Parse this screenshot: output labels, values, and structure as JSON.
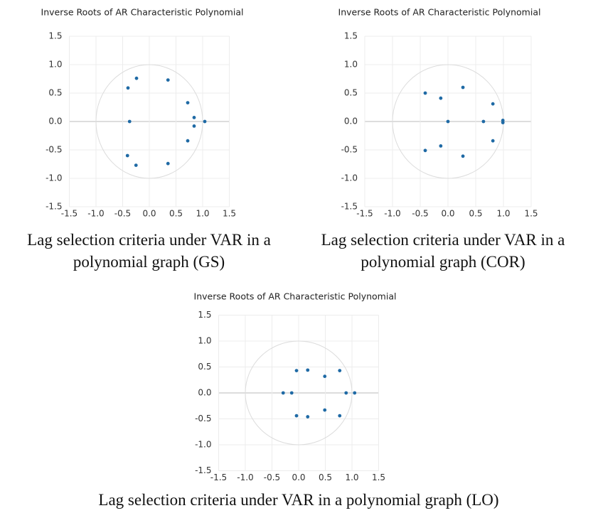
{
  "chart_data": [
    {
      "type": "scatter",
      "title": "Inverse Roots of AR Characteristic Polynomial",
      "caption": "Lag selection criteria under VAR in a polynomial graph (GS)",
      "color": "#1f6aa5",
      "grid": true,
      "xlim": [
        -1.5,
        1.5
      ],
      "ylim": [
        -1.5,
        1.5
      ],
      "xticks": [
        {
          "value": -1.5,
          "label": "-1.5"
        },
        {
          "value": -1,
          "label": "-1.0"
        },
        {
          "value": -0.5,
          "label": "-0.5"
        },
        {
          "value": 0,
          "label": "0.0"
        },
        {
          "value": 0.5,
          "label": "0.5"
        },
        {
          "value": 1,
          "label": "1.0"
        },
        {
          "value": 1.5,
          "label": "1.5"
        }
      ],
      "yticks": [
        {
          "value": -1.5,
          "label": "-1.5"
        },
        {
          "value": -1,
          "label": "-1.0"
        },
        {
          "value": -0.5,
          "label": "-0.5"
        },
        {
          "value": 0,
          "label": "0.0"
        },
        {
          "value": 0.5,
          "label": "0.5"
        },
        {
          "value": 1,
          "label": "1.0"
        },
        {
          "value": 1.5,
          "label": "1.5"
        }
      ],
      "x": [
        -0.4,
        -0.24,
        0.35,
        0.72,
        0.84,
        1.04,
        0.84,
        0.72,
        -0.37,
        -0.41,
        -0.25,
        0.35
      ],
      "values": [
        0.59,
        0.76,
        0.73,
        0.33,
        0.07,
        0.0,
        -0.08,
        -0.34,
        0.0,
        -0.6,
        -0.77,
        -0.74
      ]
    },
    {
      "type": "scatter",
      "title": "Inverse Roots of AR Characteristic Polynomial",
      "caption": "Lag selection criteria under VAR in a polynomial graph (COR)",
      "color": "#1f6aa5",
      "grid": true,
      "xlim": [
        -1.5,
        1.5
      ],
      "ylim": [
        -1.5,
        1.5
      ],
      "xticks": [
        {
          "value": -1.5,
          "label": "-1.5"
        },
        {
          "value": -1,
          "label": "-1.0"
        },
        {
          "value": -0.5,
          "label": "-0.5"
        },
        {
          "value": 0,
          "label": "0.0"
        },
        {
          "value": 0.5,
          "label": "0.5"
        },
        {
          "value": 1,
          "label": "1.0"
        },
        {
          "value": 1.5,
          "label": "1.5"
        }
      ],
      "yticks": [
        {
          "value": -1.5,
          "label": "-1.5"
        },
        {
          "value": -1,
          "label": "-1.0"
        },
        {
          "value": -0.5,
          "label": "-0.5"
        },
        {
          "value": 0,
          "label": "0.0"
        },
        {
          "value": 0.5,
          "label": "0.5"
        },
        {
          "value": 1,
          "label": "1.0"
        },
        {
          "value": 1.5,
          "label": "1.5"
        }
      ],
      "x": [
        -0.41,
        -0.13,
        0.27,
        0.81,
        0,
        0.64,
        0.99,
        0.99,
        0.81,
        -0.13,
        -0.41,
        0.27
      ],
      "values": [
        0.5,
        0.41,
        0.6,
        0.31,
        0,
        0,
        0.02,
        -0.02,
        -0.34,
        -0.43,
        -0.51,
        -0.61
      ]
    },
    {
      "type": "scatter",
      "title": "Inverse Roots of AR Characteristic Polynomial",
      "caption": "Lag selection criteria under VAR in a polynomial graph (LO)",
      "color": "#1f6aa5",
      "grid": true,
      "xlim": [
        -1.5,
        1.5
      ],
      "ylim": [
        -1.5,
        1.5
      ],
      "xticks": [
        {
          "value": -1.5,
          "label": "-1.5"
        },
        {
          "value": -1,
          "label": "-1.0"
        },
        {
          "value": -0.5,
          "label": "-0.5"
        },
        {
          "value": 0,
          "label": "0.0"
        },
        {
          "value": 0.5,
          "label": "0.5"
        },
        {
          "value": 1,
          "label": "1.0"
        },
        {
          "value": 1.5,
          "label": "1.5"
        }
      ],
      "yticks": [
        {
          "value": -1.5,
          "label": "-1.5"
        },
        {
          "value": -1,
          "label": "-1.0"
        },
        {
          "value": -0.5,
          "label": "-0.5"
        },
        {
          "value": 0,
          "label": "0.0"
        },
        {
          "value": 0.5,
          "label": "0.5"
        },
        {
          "value": 1,
          "label": "1.0"
        },
        {
          "value": 1.5,
          "label": "1.5"
        }
      ],
      "x": [
        -0.04,
        0.17,
        0.49,
        0.77,
        -0.29,
        -0.13,
        0.89,
        1.05,
        -0.04,
        0.17,
        0.49,
        0.77
      ],
      "values": [
        0.43,
        0.44,
        0.32,
        0.43,
        0,
        0,
        0,
        0,
        -0.44,
        -0.46,
        -0.33,
        -0.44
      ]
    }
  ]
}
